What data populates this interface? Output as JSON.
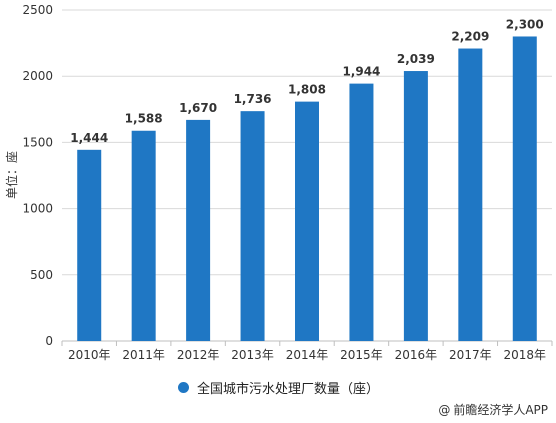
{
  "chart_data": {
    "type": "bar",
    "categories": [
      "2010年",
      "2011年",
      "2012年",
      "2013年",
      "2014年",
      "2015年",
      "2016年",
      "2017年",
      "2018年"
    ],
    "values": [
      1444,
      1588,
      1670,
      1736,
      1808,
      1944,
      2039,
      2209,
      2300
    ],
    "value_labels": [
      "1,444",
      "1,588",
      "1,670",
      "1,736",
      "1,808",
      "1,944",
      "2,039",
      "2,209",
      "2,300"
    ],
    "series": [
      {
        "name": "全国城市污水处理厂数量（座）",
        "values": [
          1444,
          1588,
          1670,
          1736,
          1808,
          1944,
          2039,
          2209,
          2300
        ]
      }
    ],
    "ylabel": "单位：座",
    "ylim": [
      0,
      2500
    ],
    "yticks": [
      0,
      500,
      1000,
      1500,
      2000,
      2500
    ],
    "grid": true,
    "legend_position": "bottom",
    "bar_color": "#1f77c4"
  },
  "legend": {
    "label": "全国城市污水处理厂数量（座）"
  },
  "credit": {
    "symbol": "@",
    "text": "前瞻经济学人APP"
  }
}
